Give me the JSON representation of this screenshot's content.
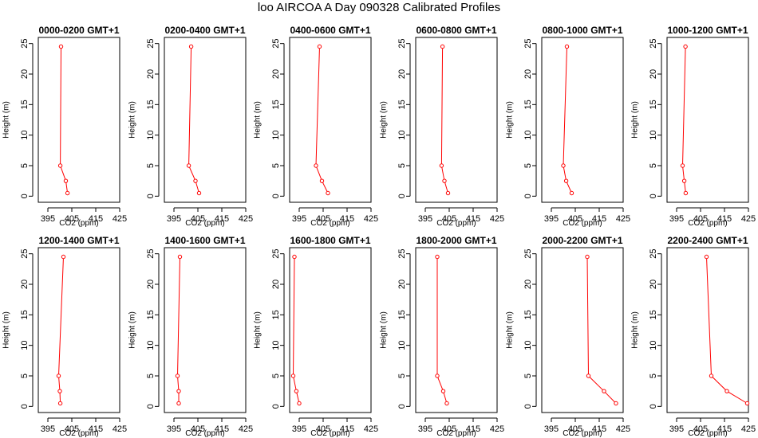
{
  "page_title": "loo AIRCOA A  Day 090328  Calibrated Profiles",
  "chart_data": [
    {
      "type": "line",
      "title": "0000-0200 GMT+1",
      "xlabel": "CO2 (ppm)",
      "ylabel": "Height (m)",
      "xlim": [
        391,
        425
      ],
      "ylim": [
        -1,
        26
      ],
      "x_ticks": [
        395,
        405,
        415,
        425
      ],
      "y_ticks": [
        0,
        5,
        10,
        15,
        20,
        25
      ],
      "grid": false,
      "series": [
        {
          "x": [
            403.2,
            402.5,
            400.2,
            400.5
          ],
          "y": [
            0.5,
            2.5,
            5,
            24.5
          ]
        }
      ]
    },
    {
      "type": "line",
      "title": "0200-0400 GMT+1",
      "xlabel": "CO2 (ppm)",
      "ylabel": "Height (m)",
      "xlim": [
        391,
        425
      ],
      "ylim": [
        -1,
        26
      ],
      "x_ticks": [
        395,
        405,
        415,
        425
      ],
      "y_ticks": [
        0,
        5,
        10,
        15,
        20,
        25
      ],
      "grid": false,
      "series": [
        {
          "x": [
            405.5,
            404.0,
            401.2,
            402.2
          ],
          "y": [
            0.5,
            2.5,
            5,
            24.5
          ]
        }
      ]
    },
    {
      "type": "line",
      "title": "0400-0600 GMT+1",
      "xlabel": "CO2 (ppm)",
      "ylabel": "Height (m)",
      "xlim": [
        391,
        425
      ],
      "ylim": [
        -1,
        26
      ],
      "x_ticks": [
        395,
        405,
        415,
        425
      ],
      "y_ticks": [
        0,
        5,
        10,
        15,
        20,
        25
      ],
      "grid": false,
      "series": [
        {
          "x": [
            407.0,
            404.5,
            402.0,
            403.5
          ],
          "y": [
            0.5,
            2.5,
            5,
            24.5
          ]
        }
      ]
    },
    {
      "type": "line",
      "title": "0600-0800 GMT+1",
      "xlabel": "CO2 (ppm)",
      "ylabel": "Height (m)",
      "xlim": [
        391,
        425
      ],
      "ylim": [
        -1,
        26
      ],
      "x_ticks": [
        395,
        405,
        415,
        425
      ],
      "y_ticks": [
        0,
        5,
        10,
        15,
        20,
        25
      ],
      "grid": false,
      "series": [
        {
          "x": [
            404.5,
            403.0,
            401.8,
            402.2
          ],
          "y": [
            0.5,
            2.5,
            5,
            24.5
          ]
        }
      ]
    },
    {
      "type": "line",
      "title": "0800-1000 GMT+1",
      "xlabel": "CO2 (ppm)",
      "ylabel": "Height (m)",
      "xlim": [
        391,
        425
      ],
      "ylim": [
        -1,
        26
      ],
      "x_ticks": [
        395,
        405,
        415,
        425
      ],
      "y_ticks": [
        0,
        5,
        10,
        15,
        20,
        25
      ],
      "grid": false,
      "series": [
        {
          "x": [
            403.5,
            401.2,
            400.0,
            401.5
          ],
          "y": [
            0.5,
            2.5,
            5,
            24.5
          ]
        }
      ]
    },
    {
      "type": "line",
      "title": "1000-1200 GMT+1",
      "xlabel": "CO2 (ppm)",
      "ylabel": "Height (m)",
      "xlim": [
        391,
        425
      ],
      "ylim": [
        -1,
        26
      ],
      "x_ticks": [
        395,
        405,
        415,
        425
      ],
      "y_ticks": [
        0,
        5,
        10,
        15,
        20,
        25
      ],
      "grid": false,
      "series": [
        {
          "x": [
            398.8,
            398.2,
            397.5,
            398.7
          ],
          "y": [
            0.5,
            2.5,
            5,
            24.5
          ]
        }
      ]
    },
    {
      "type": "line",
      "title": "1200-1400 GMT+1",
      "xlabel": "CO2 (ppm)",
      "ylabel": "Height (m)",
      "xlim": [
        391,
        425
      ],
      "ylim": [
        -1,
        26
      ],
      "x_ticks": [
        395,
        405,
        415,
        425
      ],
      "y_ticks": [
        0,
        5,
        10,
        15,
        20,
        25
      ],
      "grid": false,
      "series": [
        {
          "x": [
            400.2,
            400.0,
            399.5,
            401.5
          ],
          "y": [
            0.5,
            2.5,
            5,
            24.5
          ]
        }
      ]
    },
    {
      "type": "line",
      "title": "1400-1600 GMT+1",
      "xlabel": "CO2 (ppm)",
      "ylabel": "Height (m)",
      "xlim": [
        391,
        425
      ],
      "ylim": [
        -1,
        26
      ],
      "x_ticks": [
        395,
        405,
        415,
        425
      ],
      "y_ticks": [
        0,
        5,
        10,
        15,
        20,
        25
      ],
      "grid": false,
      "series": [
        {
          "x": [
            397.0,
            397.0,
            396.5,
            397.5
          ],
          "y": [
            0.5,
            2.5,
            5,
            24.5
          ]
        }
      ]
    },
    {
      "type": "line",
      "title": "1600-1800 GMT+1",
      "xlabel": "CO2 (ppm)",
      "ylabel": "Height (m)",
      "xlim": [
        391,
        425
      ],
      "ylim": [
        -1,
        26
      ],
      "x_ticks": [
        395,
        405,
        415,
        425
      ],
      "y_ticks": [
        0,
        5,
        10,
        15,
        20,
        25
      ],
      "grid": false,
      "series": [
        {
          "x": [
            395.0,
            393.8,
            392.5,
            393.0
          ],
          "y": [
            0.5,
            2.5,
            5,
            24.5
          ]
        }
      ]
    },
    {
      "type": "line",
      "title": "1800-2000 GMT+1",
      "xlabel": "CO2 (ppm)",
      "ylabel": "Height (m)",
      "xlim": [
        391,
        425
      ],
      "ylim": [
        -1,
        26
      ],
      "x_ticks": [
        395,
        405,
        415,
        425
      ],
      "y_ticks": [
        0,
        5,
        10,
        15,
        20,
        25
      ],
      "grid": false,
      "series": [
        {
          "x": [
            404.0,
            402.5,
            400.0,
            400.0
          ],
          "y": [
            0.5,
            2.5,
            5,
            24.5
          ]
        }
      ]
    },
    {
      "type": "line",
      "title": "2000-2200 GMT+1",
      "xlabel": "CO2 (ppm)",
      "ylabel": "Height (m)",
      "xlim": [
        391,
        425
      ],
      "ylim": [
        -1,
        26
      ],
      "x_ticks": [
        395,
        405,
        415,
        425
      ],
      "y_ticks": [
        0,
        5,
        10,
        15,
        20,
        25
      ],
      "grid": false,
      "series": [
        {
          "x": [
            422.0,
            417.0,
            410.5,
            410.0
          ],
          "y": [
            0.5,
            2.5,
            5,
            24.5
          ]
        }
      ]
    },
    {
      "type": "line",
      "title": "2200-2400 GMT+1",
      "xlabel": "CO2 (ppm)",
      "ylabel": "Height (m)",
      "xlim": [
        391,
        425
      ],
      "ylim": [
        -1,
        26
      ],
      "x_ticks": [
        395,
        405,
        415,
        425
      ],
      "y_ticks": [
        0,
        5,
        10,
        15,
        20,
        25
      ],
      "grid": false,
      "series": [
        {
          "x": [
            424.5,
            416.0,
            409.5,
            407.5
          ],
          "y": [
            0.5,
            2.5,
            5,
            24.5
          ]
        }
      ]
    }
  ],
  "colors": {
    "series": "#ff0000",
    "axes": "#000000",
    "background": "#ffffff"
  }
}
